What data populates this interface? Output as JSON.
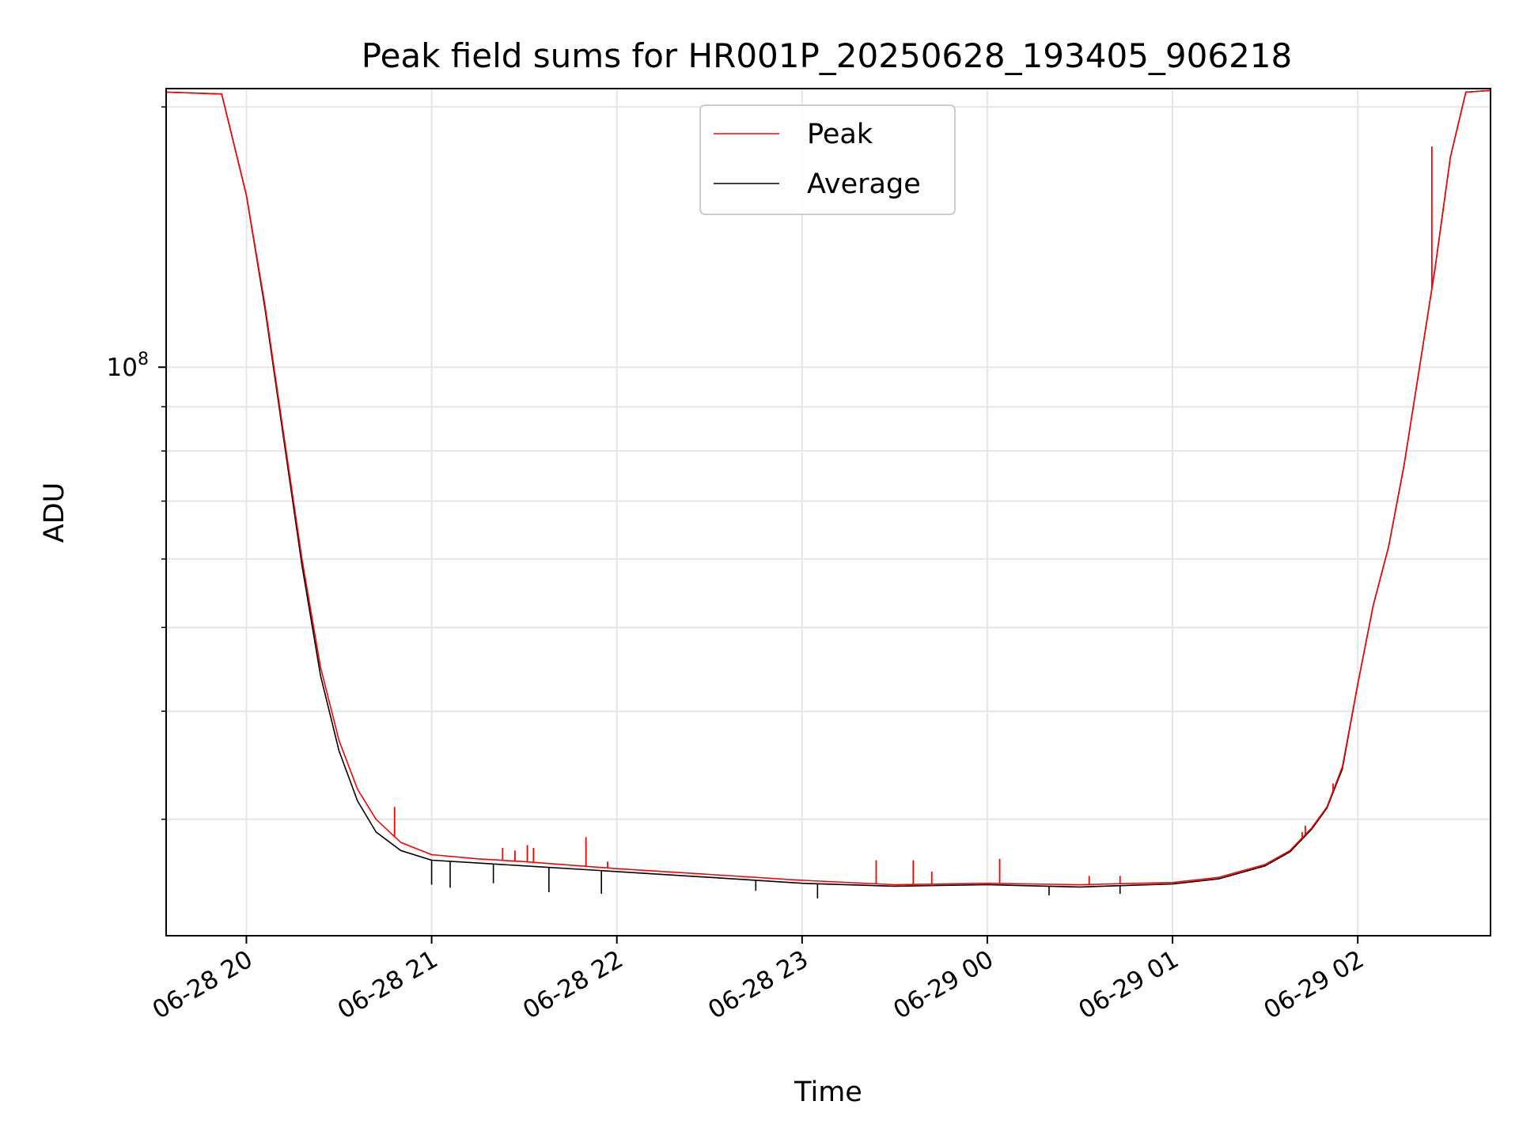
{
  "chart_data": {
    "type": "line",
    "title": "Peak field sums for HR001P_20250628_193405_906218",
    "xlabel": "Time",
    "ylabel": "ADU",
    "y_scale": "log",
    "ylim": [
      22000000,
      210000000
    ],
    "xlim": [
      "2025-06-28T19:34:00",
      "2025-06-29T02:43:00"
    ],
    "x_ticks": [
      {
        "t": "2025-06-28T20:00:00",
        "label": "06-28 20"
      },
      {
        "t": "2025-06-28T21:00:00",
        "label": "06-28 21"
      },
      {
        "t": "2025-06-28T22:00:00",
        "label": "06-28 22"
      },
      {
        "t": "2025-06-28T23:00:00",
        "label": "06-28 23"
      },
      {
        "t": "2025-06-29T00:00:00",
        "label": "06-29 00"
      },
      {
        "t": "2025-06-29T01:00:00",
        "label": "06-29 01"
      },
      {
        "t": "2025-06-29T02:00:00",
        "label": "06-29 02"
      }
    ],
    "y_major_tick": {
      "value": 100000000,
      "label_base": "10",
      "label_exp": "8"
    },
    "y_minor_ticks": [
      30000000,
      40000000,
      50000000,
      60000000,
      70000000,
      80000000,
      90000000,
      200000000
    ],
    "grid": true,
    "legend": "top-center",
    "series": [
      {
        "name": "Peak",
        "color": "#ff0000",
        "x": [
          "2025-06-28T19:34:00",
          "2025-06-28T19:52:00",
          "2025-06-28T20:00:00",
          "2025-06-28T20:06:00",
          "2025-06-28T20:12:00",
          "2025-06-28T20:18:00",
          "2025-06-28T20:24:00",
          "2025-06-28T20:30:00",
          "2025-06-28T20:36:00",
          "2025-06-28T20:42:00",
          "2025-06-28T20:50:00",
          "2025-06-28T21:00:00",
          "2025-06-28T21:15:00",
          "2025-06-28T21:30:00",
          "2025-06-28T22:00:00",
          "2025-06-28T22:30:00",
          "2025-06-28T23:00:00",
          "2025-06-28T23:30:00",
          "2025-06-29T00:00:00",
          "2025-06-29T00:30:00",
          "2025-06-29T01:00:00",
          "2025-06-29T01:15:00",
          "2025-06-29T01:30:00",
          "2025-06-29T01:38:00",
          "2025-06-29T01:45:00",
          "2025-06-29T01:50:00",
          "2025-06-29T01:55:00",
          "2025-06-29T02:00:00",
          "2025-06-29T02:05:00",
          "2025-06-29T02:10:00",
          "2025-06-29T02:15:00",
          "2025-06-29T02:20:00",
          "2025-06-29T02:25:00",
          "2025-06-29T02:30:00",
          "2025-06-29T02:35:00",
          "2025-06-29T02:43:00"
        ],
        "y": [
          208000000,
          207000000,
          158000000,
          118000000,
          84000000,
          60000000,
          45000000,
          37000000,
          32500000,
          30000000,
          28200000,
          27300000,
          27000000,
          26800000,
          26300000,
          25900000,
          25500000,
          25200000,
          25300000,
          25200000,
          25350000,
          25700000,
          26600000,
          27600000,
          29300000,
          31000000,
          34500000,
          43000000,
          53000000,
          62000000,
          77000000,
          100000000,
          130000000,
          175000000,
          208000000,
          209000000
        ]
      },
      {
        "name": "Average",
        "color": "#000000",
        "x": [
          "2025-06-28T19:34:00",
          "2025-06-28T19:52:00",
          "2025-06-28T20:00:00",
          "2025-06-28T20:06:00",
          "2025-06-28T20:12:00",
          "2025-06-28T20:18:00",
          "2025-06-28T20:24:00",
          "2025-06-28T20:30:00",
          "2025-06-28T20:36:00",
          "2025-06-28T20:42:00",
          "2025-06-28T20:50:00",
          "2025-06-28T21:00:00",
          "2025-06-28T21:15:00",
          "2025-06-28T21:30:00",
          "2025-06-28T22:00:00",
          "2025-06-28T22:30:00",
          "2025-06-28T23:00:00",
          "2025-06-28T23:30:00",
          "2025-06-29T00:00:00",
          "2025-06-29T00:30:00",
          "2025-06-29T01:00:00",
          "2025-06-29T01:15:00",
          "2025-06-29T01:30:00",
          "2025-06-29T01:38:00",
          "2025-06-29T01:45:00",
          "2025-06-29T01:50:00",
          "2025-06-29T01:55:00",
          "2025-06-29T02:00:00",
          "2025-06-29T02:05:00",
          "2025-06-29T02:10:00",
          "2025-06-29T02:15:00",
          "2025-06-29T02:20:00",
          "2025-06-29T02:25:00",
          "2025-06-29T02:30:00",
          "2025-06-29T02:35:00",
          "2025-06-29T02:43:00"
        ],
        "y": [
          208000000,
          207000000,
          158000000,
          117000000,
          83000000,
          59000000,
          44000000,
          36000000,
          31500000,
          29000000,
          27600000,
          26900000,
          26700000,
          26500000,
          26100000,
          25700000,
          25300000,
          25100000,
          25200000,
          25050000,
          25250000,
          25600000,
          26500000,
          27500000,
          29200000,
          30900000,
          34300000,
          43000000,
          53000000,
          62000000,
          77000000,
          100000000,
          130000000,
          175000000,
          208000000,
          209000000
        ]
      }
    ],
    "spikes": [
      {
        "series": "Peak",
        "t": "2025-06-28T20:48:00",
        "y": 31000000
      },
      {
        "series": "Peak",
        "t": "2025-06-28T21:23:00",
        "y": 27800000
      },
      {
        "series": "Peak",
        "t": "2025-06-28T21:27:00",
        "y": 27600000
      },
      {
        "series": "Peak",
        "t": "2025-06-28T21:31:00",
        "y": 28000000
      },
      {
        "series": "Peak",
        "t": "2025-06-28T21:33:00",
        "y": 27800000
      },
      {
        "series": "Peak",
        "t": "2025-06-28T21:50:00",
        "y": 28600000
      },
      {
        "series": "Peak",
        "t": "2025-06-28T21:57:00",
        "y": 26800000
      },
      {
        "series": "Peak",
        "t": "2025-06-28T23:24:00",
        "y": 26900000
      },
      {
        "series": "Peak",
        "t": "2025-06-28T23:36:00",
        "y": 26900000
      },
      {
        "series": "Peak",
        "t": "2025-06-28T23:42:00",
        "y": 26100000
      },
      {
        "series": "Peak",
        "t": "2025-06-29T00:04:00",
        "y": 27000000
      },
      {
        "series": "Peak",
        "t": "2025-06-29T00:33:00",
        "y": 25800000
      },
      {
        "series": "Peak",
        "t": "2025-06-29T00:43:00",
        "y": 25800000
      },
      {
        "series": "Peak",
        "t": "2025-06-29T01:42:00",
        "y": 29000000
      },
      {
        "series": "Peak",
        "t": "2025-06-29T01:43:00",
        "y": 29500000
      },
      {
        "series": "Peak",
        "t": "2025-06-29T01:52:00",
        "y": 33000000
      },
      {
        "series": "Peak",
        "t": "2025-06-29T02:24:00",
        "y": 180000000
      }
    ],
    "dips": [
      {
        "series": "Average",
        "t": "2025-06-28T21:00:00",
        "y": 25200000
      },
      {
        "series": "Average",
        "t": "2025-06-28T21:06:00",
        "y": 25000000
      },
      {
        "series": "Average",
        "t": "2025-06-28T21:20:00",
        "y": 25300000
      },
      {
        "series": "Average",
        "t": "2025-06-28T21:38:00",
        "y": 24700000
      },
      {
        "series": "Average",
        "t": "2025-06-28T21:55:00",
        "y": 24600000
      },
      {
        "series": "Average",
        "t": "2025-06-28T22:45:00",
        "y": 24800000
      },
      {
        "series": "Average",
        "t": "2025-06-28T23:05:00",
        "y": 24300000
      },
      {
        "series": "Average",
        "t": "2025-06-29T00:20:00",
        "y": 24500000
      },
      {
        "series": "Average",
        "t": "2025-06-29T00:43:00",
        "y": 24600000
      }
    ]
  }
}
